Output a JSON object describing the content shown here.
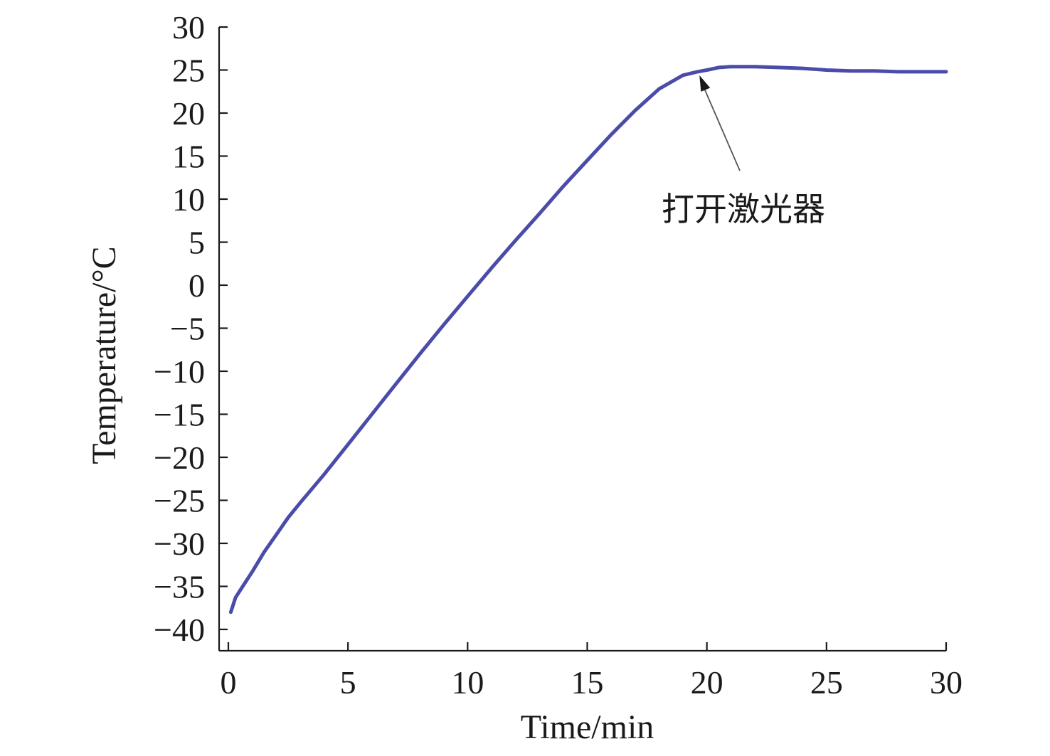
{
  "chart_data": {
    "type": "line",
    "xlabel": "Time/min",
    "ylabel": "Temperature/°C",
    "xlim": [
      0,
      30
    ],
    "ylim": [
      -42,
      30
    ],
    "x_ticks": [
      0,
      5,
      10,
      15,
      20,
      25,
      30
    ],
    "x_tick_labels": [
      "0",
      "5",
      "10",
      "15",
      "20",
      "25",
      "30"
    ],
    "y_ticks": [
      -40,
      -35,
      -30,
      -25,
      -20,
      -15,
      -10,
      -5,
      0,
      5,
      10,
      15,
      20,
      25,
      30
    ],
    "y_tick_labels": [
      "−40",
      "−35",
      "−30",
      "−25",
      "−20",
      "−15",
      "−10",
      "−5",
      "0",
      "5",
      "10",
      "15",
      "20",
      "25",
      "30"
    ],
    "grid": false,
    "series": [
      {
        "color": "#4b4baa",
        "x": [
          0.1,
          0.3,
          0.6,
          1,
          1.5,
          2,
          2.5,
          3,
          4,
          5,
          6,
          7,
          8,
          9,
          10,
          11,
          12,
          13,
          14,
          15,
          16,
          17,
          18,
          19,
          19.6,
          20,
          20.5,
          21,
          22,
          23,
          24,
          25,
          26,
          27,
          28,
          29,
          30
        ],
        "y": [
          -38,
          -36.3,
          -35,
          -33.3,
          -31,
          -29,
          -27,
          -25.3,
          -22,
          -18.5,
          -15,
          -11.5,
          -8,
          -4.6,
          -1.3,
          2,
          5.2,
          8.3,
          11.5,
          14.5,
          17.5,
          20.3,
          22.8,
          24.4,
          24.8,
          25.0,
          25.3,
          25.4,
          25.4,
          25.3,
          25.2,
          25.0,
          24.9,
          24.9,
          24.8,
          24.8,
          24.8
        ]
      }
    ],
    "annotations": [
      {
        "text": "打开激光器",
        "x": 19.6,
        "y": 24.8
      }
    ]
  }
}
